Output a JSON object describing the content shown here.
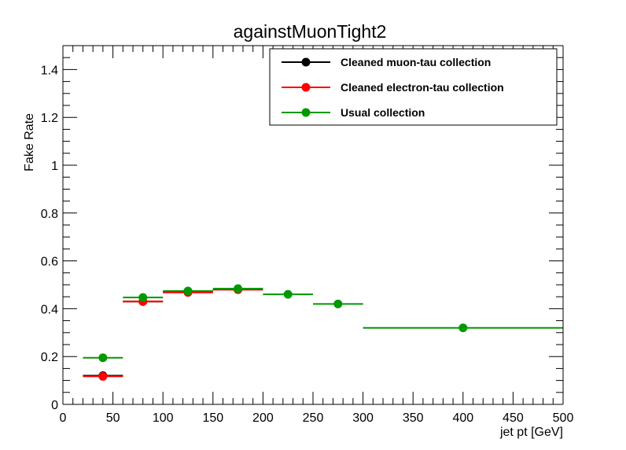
{
  "chart_data": {
    "type": "scatter",
    "title": "againstMuonTight2",
    "xlabel": "jet pt [GeV]",
    "ylabel": "Fake Rate",
    "xlim": [
      0,
      500
    ],
    "ylim": [
      0,
      1.5
    ],
    "x_ticks": [
      0,
      50,
      100,
      150,
      200,
      250,
      300,
      350,
      400,
      450,
      500
    ],
    "x_tick_labels": [
      "0",
      "50",
      "100",
      "150",
      "200",
      "250",
      "300",
      "350",
      "400",
      "450",
      "500"
    ],
    "y_ticks": [
      0,
      0.2,
      0.4,
      0.6,
      0.8,
      1,
      1.2,
      1.4
    ],
    "y_tick_labels": [
      "0",
      "0.2",
      "0.4",
      "0.6",
      "0.8",
      "1",
      "1.2",
      "1.4"
    ],
    "grid": false,
    "legend_position": "top-right",
    "series": [
      {
        "name": "Cleaned muon-tau collection",
        "color": "#000000",
        "points": [
          {
            "x": 40,
            "xlow": 20,
            "xhigh": 60,
            "y": 0.12
          },
          {
            "x": 80,
            "xlow": 60,
            "xhigh": 100,
            "y": 0.43
          },
          {
            "x": 125,
            "xlow": 100,
            "xhigh": 150,
            "y": 0.47
          },
          {
            "x": 175,
            "xlow": 150,
            "xhigh": 200,
            "y": 0.48
          }
        ]
      },
      {
        "name": "Cleaned electron-tau collection",
        "color": "#ff0000",
        "points": [
          {
            "x": 40,
            "xlow": 20,
            "xhigh": 60,
            "y": 0.117
          },
          {
            "x": 80,
            "xlow": 60,
            "xhigh": 100,
            "y": 0.43
          },
          {
            "x": 125,
            "xlow": 100,
            "xhigh": 150,
            "y": 0.468
          },
          {
            "x": 175,
            "xlow": 150,
            "xhigh": 200,
            "y": 0.48
          }
        ]
      },
      {
        "name": "Usual collection",
        "color": "#009900",
        "points": [
          {
            "x": 40,
            "xlow": 20,
            "xhigh": 60,
            "y": 0.195
          },
          {
            "x": 80,
            "xlow": 60,
            "xhigh": 100,
            "y": 0.447
          },
          {
            "x": 125,
            "xlow": 100,
            "xhigh": 150,
            "y": 0.474
          },
          {
            "x": 175,
            "xlow": 150,
            "xhigh": 200,
            "y": 0.484
          },
          {
            "x": 225,
            "xlow": 200,
            "xhigh": 250,
            "y": 0.46
          },
          {
            "x": 275,
            "xlow": 250,
            "xhigh": 300,
            "y": 0.42
          },
          {
            "x": 400,
            "xlow": 300,
            "xhigh": 500,
            "y": 0.32
          }
        ]
      }
    ]
  }
}
